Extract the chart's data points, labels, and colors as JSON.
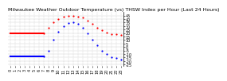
{
  "title": "Milwaukee Weather Outdoor Temperature (vs) THSW Index per Hour (Last 24 Hours)",
  "background_color": "#ffffff",
  "grid_color": "#cccccc",
  "ylim": [
    -27,
    50
  ],
  "yticks": [
    45,
    40,
    35,
    30,
    25,
    20,
    15,
    10,
    5,
    0,
    -5,
    -10,
    -15,
    -20,
    -25
  ],
  "xlim": [
    -0.5,
    23.5
  ],
  "hours": [
    0,
    1,
    2,
    3,
    4,
    5,
    6,
    7,
    8,
    9,
    10,
    11,
    12,
    13,
    14,
    15,
    16,
    17,
    18,
    19,
    20,
    21,
    22,
    23
  ],
  "temp_red": [
    20,
    20,
    20,
    20,
    20,
    20,
    20,
    20,
    28,
    35,
    40,
    43,
    45,
    45,
    44,
    42,
    38,
    33,
    28,
    24,
    21,
    19,
    18,
    17
  ],
  "thsw_blue": [
    -13,
    -13,
    -13,
    -13,
    -13,
    -13,
    -13,
    -13,
    -5,
    10,
    22,
    30,
    34,
    35,
    33,
    28,
    20,
    10,
    2,
    -5,
    -10,
    -14,
    -16,
    -18
  ],
  "solid_end": 7,
  "title_fontsize": 4.5,
  "tick_fontsize": 3.5,
  "red_color": "#ff0000",
  "blue_color": "#0000ff",
  "dot_size": 2.5,
  "line_width": 1.5
}
